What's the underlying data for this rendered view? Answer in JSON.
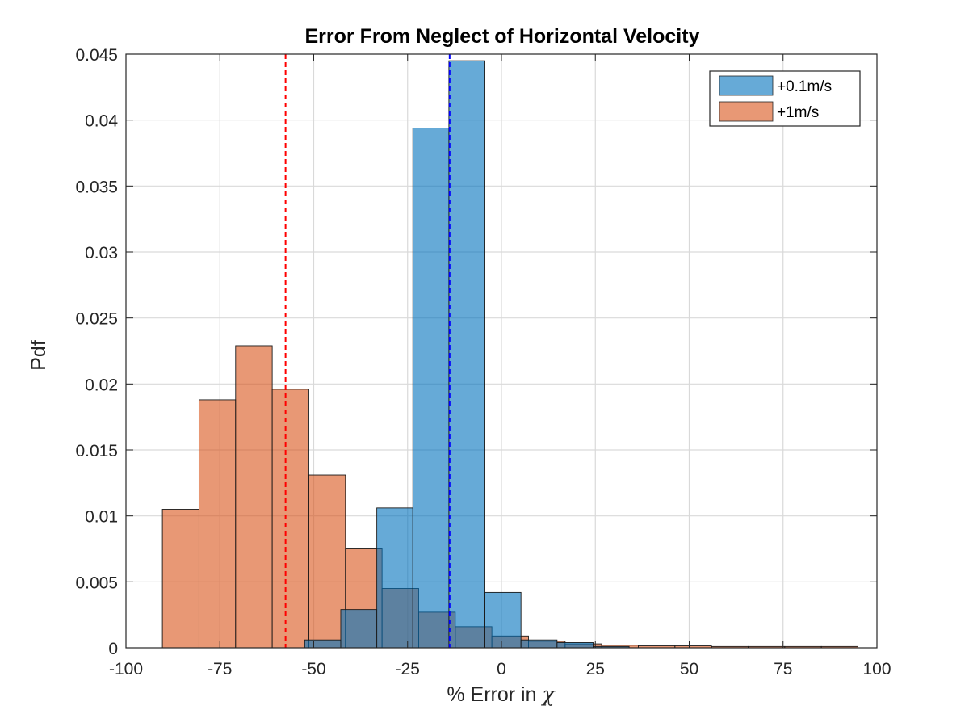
{
  "chart_data": {
    "type": "bar",
    "title": "Error From Neglect of Horizontal Velocity",
    "xlabel": "% Error in ",
    "xlabel_symbol": "χ",
    "ylabel": "Pdf",
    "xlim": [
      -100,
      100
    ],
    "ylim": [
      0,
      0.045
    ],
    "xticks": [
      -100,
      -75,
      -50,
      -25,
      0,
      25,
      50,
      75,
      100
    ],
    "yticks": [
      0,
      0.005,
      0.01,
      0.015,
      0.02,
      0.025,
      0.03,
      0.035,
      0.04,
      0.045
    ],
    "xtick_labels": [
      "-100",
      "-75",
      "-50",
      "-25",
      "0",
      "25",
      "50",
      "75",
      "100"
    ],
    "ytick_labels": [
      "0",
      "0.005",
      "0.01",
      "0.015",
      "0.02",
      "0.025",
      "0.03",
      "0.035",
      "0.04",
      "0.045"
    ],
    "grid": true,
    "legend_position": "top-right",
    "series": [
      {
        "name": "+1m/s",
        "color": "#d95319",
        "bin_width": 9.75,
        "bin_starts": [
          -90.3,
          -80.55,
          -70.8,
          -61.05,
          -51.3,
          -41.55,
          -31.8,
          -22.05,
          -12.3,
          -2.55,
          7.2,
          16.95,
          26.7,
          36.45,
          46.2,
          55.95,
          65.7,
          75.45,
          85.2
        ],
        "values": [
          0.0105,
          0.0188,
          0.0229,
          0.0196,
          0.0131,
          0.0075,
          0.0045,
          0.0027,
          0.0016,
          0.0009,
          0.0005,
          0.0003,
          0.0002,
          0.00015,
          0.00015,
          0.0001,
          0.0001,
          0.0001,
          0.0001
        ]
      },
      {
        "name": "+0.1m/s",
        "color": "#0072bd",
        "bin_width": 9.6,
        "bin_starts": [
          -52.4,
          -42.8,
          -33.2,
          -23.6,
          -14.0,
          -4.4,
          5.2,
          14.8,
          24.4
        ],
        "values": [
          0.0006,
          0.0029,
          0.0106,
          0.0394,
          0.0445,
          0.0042,
          0.0006,
          0.0004,
          0.0001
        ]
      }
    ],
    "reference_lines": [
      {
        "x": -57.5,
        "color": "#ff0000",
        "style": "dashed"
      },
      {
        "x": -13.8,
        "color": "#0000ff",
        "style": "dashed"
      }
    ]
  }
}
